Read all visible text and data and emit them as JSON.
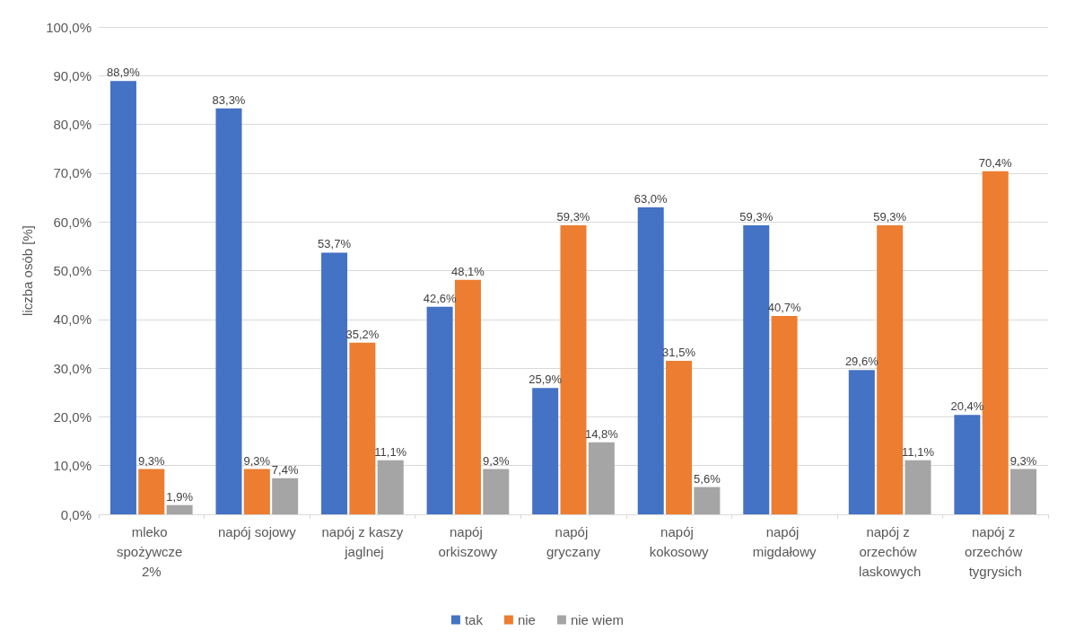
{
  "chart_data": {
    "type": "bar",
    "ylabel": "liczba osób [%]",
    "categories": [
      "mleko spożywcze 2%",
      "napój sojowy",
      "napój z kaszy jaglnej",
      "napój orkiszowy",
      "napój gryczany",
      "napój kokosowy",
      "napój migdałowy",
      "napój z orzechów laskowych",
      "napój z orzechów tygrysich"
    ],
    "series": [
      {
        "name": "tak",
        "color": "#4472c4",
        "values": [
          88.9,
          83.3,
          53.7,
          42.6,
          25.9,
          63.0,
          59.3,
          29.6,
          20.4
        ],
        "value_labels": [
          "88,9%",
          "83,3%",
          "53,7%",
          "42,6%",
          "25,9%",
          "63,0%",
          "59,3%",
          "29,6%",
          "20,4%"
        ]
      },
      {
        "name": "nie",
        "color": "#ed7d31",
        "values": [
          9.3,
          9.3,
          35.2,
          48.1,
          59.3,
          31.5,
          40.7,
          59.3,
          70.4
        ],
        "value_labels": [
          "9,3%",
          "9,3%",
          "35,2%",
          "48,1%",
          "59,3%",
          "31,5%",
          "40,7%",
          "59,3%",
          "70,4%"
        ]
      },
      {
        "name": "nie wiem",
        "color": "#a5a5a5",
        "values": [
          1.9,
          7.4,
          11.1,
          9.3,
          14.8,
          5.6,
          0,
          11.1,
          9.3
        ],
        "value_labels": [
          "1,9%",
          "7,4%",
          "11,1%",
          "9,3%",
          "14,8%",
          "5,6%",
          null,
          "11,1%",
          "9,3%"
        ]
      }
    ],
    "ylim": [
      0,
      100
    ],
    "yticks": [
      {
        "value": 0,
        "label": "0,0%"
      },
      {
        "value": 10,
        "label": "10,0%"
      },
      {
        "value": 20,
        "label": "20,0%"
      },
      {
        "value": 30,
        "label": "30,0%"
      },
      {
        "value": 40,
        "label": "40,0%"
      },
      {
        "value": 50,
        "label": "50,0%"
      },
      {
        "value": 60,
        "label": "60,0%"
      },
      {
        "value": 70,
        "label": "70,0%"
      },
      {
        "value": 80,
        "label": "80,0%"
      },
      {
        "value": 90,
        "label": "90,0%"
      },
      {
        "value": 100,
        "label": "100,0%"
      }
    ],
    "grid": "y",
    "legend": "bottom"
  }
}
